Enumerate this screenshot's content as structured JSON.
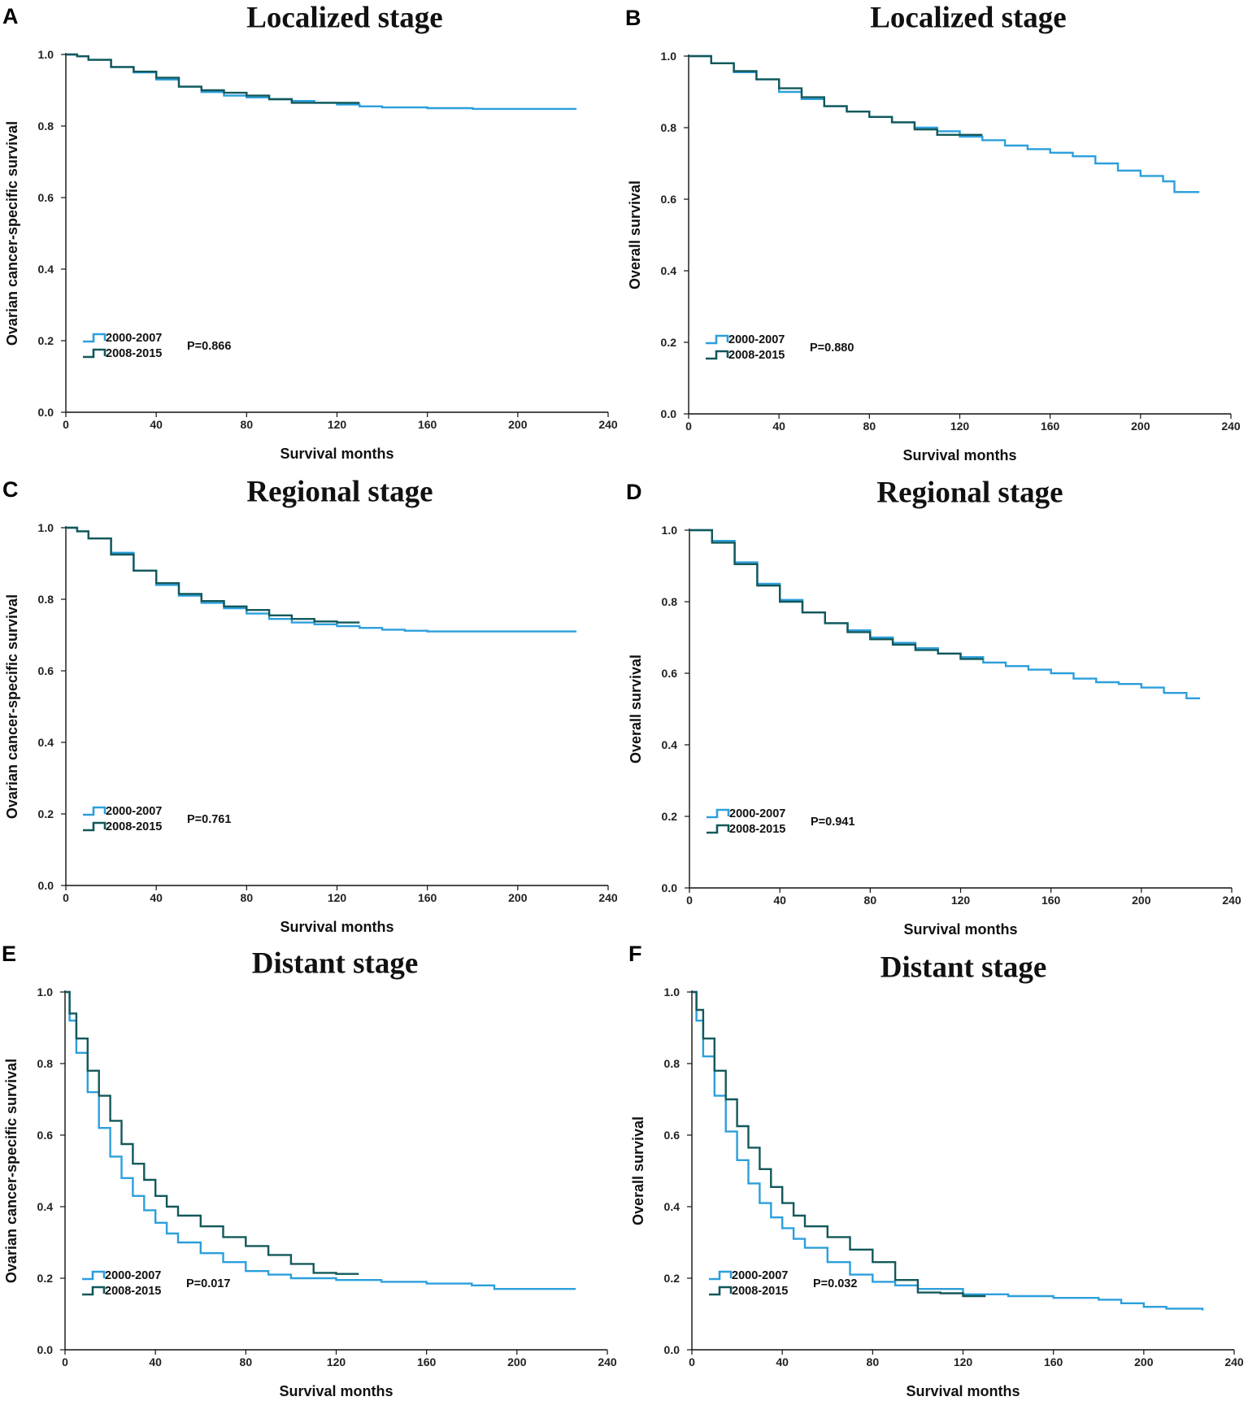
{
  "figure": {
    "series_colors": [
      "#2b9fdc",
      "#13585a"
    ],
    "legend_labels": [
      "2000-2007",
      "2008-2015"
    ]
  },
  "chart_data": [
    {
      "panel": "A",
      "type": "line",
      "title": "Localized stage",
      "xlabel": "Survival months",
      "ylabel": "Ovarian cancer-specific survival",
      "xlim": [
        0,
        240
      ],
      "ylim": [
        0,
        1
      ],
      "xticks": [
        "0",
        "40",
        "80",
        "120",
        "160",
        "200",
        "240"
      ],
      "yticks": [
        "0.0",
        "0.2",
        "0.4",
        "0.6",
        "0.8",
        "1.0"
      ],
      "p_value": "P=0.866",
      "series": [
        {
          "name": "2000-2007",
          "x": [
            0,
            5,
            10,
            20,
            30,
            40,
            50,
            60,
            70,
            80,
            90,
            100,
            110,
            120,
            130,
            140,
            160,
            180,
            200,
            226
          ],
          "y": [
            1.0,
            0.995,
            0.985,
            0.965,
            0.95,
            0.93,
            0.91,
            0.895,
            0.885,
            0.88,
            0.875,
            0.87,
            0.865,
            0.86,
            0.855,
            0.852,
            0.85,
            0.848,
            0.848,
            0.848
          ]
        },
        {
          "name": "2008-2015",
          "x": [
            0,
            5,
            10,
            20,
            30,
            40,
            50,
            60,
            70,
            80,
            90,
            100,
            110,
            120,
            130
          ],
          "y": [
            1.0,
            0.995,
            0.985,
            0.965,
            0.952,
            0.935,
            0.91,
            0.9,
            0.893,
            0.885,
            0.875,
            0.865,
            0.865,
            0.865,
            0.865
          ]
        }
      ]
    },
    {
      "panel": "B",
      "type": "line",
      "title": "Localized stage",
      "xlabel": "Survival months",
      "ylabel": "Overall survival",
      "xlim": [
        0,
        240
      ],
      "ylim": [
        0,
        1
      ],
      "xticks": [
        "0",
        "40",
        "80",
        "120",
        "160",
        "200",
        "240"
      ],
      "yticks": [
        "0.0",
        "0.2",
        "0.4",
        "0.6",
        "0.8",
        "1.0"
      ],
      "p_value": "P=0.880",
      "series": [
        {
          "name": "2000-2007",
          "x": [
            0,
            10,
            20,
            30,
            40,
            50,
            60,
            70,
            80,
            90,
            100,
            110,
            120,
            130,
            140,
            150,
            160,
            170,
            180,
            190,
            200,
            210,
            215,
            226
          ],
          "y": [
            1.0,
            0.98,
            0.955,
            0.935,
            0.9,
            0.88,
            0.86,
            0.845,
            0.83,
            0.815,
            0.8,
            0.79,
            0.775,
            0.765,
            0.75,
            0.74,
            0.73,
            0.72,
            0.7,
            0.68,
            0.665,
            0.65,
            0.62,
            0.62
          ]
        },
        {
          "name": "2008-2015",
          "x": [
            0,
            10,
            20,
            30,
            40,
            50,
            60,
            70,
            80,
            90,
            100,
            110,
            120,
            130
          ],
          "y": [
            1.0,
            0.98,
            0.958,
            0.935,
            0.91,
            0.885,
            0.86,
            0.845,
            0.83,
            0.815,
            0.795,
            0.78,
            0.78,
            0.78
          ]
        }
      ]
    },
    {
      "panel": "C",
      "type": "line",
      "title": "Regional stage",
      "xlabel": "Survival months",
      "ylabel": "Ovarian cancer-specific survival",
      "xlim": [
        0,
        240
      ],
      "ylim": [
        0,
        1
      ],
      "xticks": [
        "0",
        "40",
        "80",
        "120",
        "160",
        "200",
        "240"
      ],
      "yticks": [
        "0.0",
        "0.2",
        "0.4",
        "0.6",
        "0.8",
        "1.0"
      ],
      "p_value": "P=0.761",
      "series": [
        {
          "name": "2000-2007",
          "x": [
            0,
            5,
            10,
            20,
            30,
            40,
            50,
            60,
            70,
            80,
            90,
            100,
            110,
            120,
            130,
            140,
            150,
            160,
            180,
            200,
            226
          ],
          "y": [
            1.0,
            0.99,
            0.97,
            0.93,
            0.88,
            0.84,
            0.81,
            0.79,
            0.775,
            0.76,
            0.745,
            0.735,
            0.73,
            0.725,
            0.72,
            0.715,
            0.712,
            0.71,
            0.71,
            0.71,
            0.71
          ]
        },
        {
          "name": "2008-2015",
          "x": [
            0,
            5,
            10,
            20,
            30,
            40,
            50,
            60,
            70,
            80,
            90,
            100,
            110,
            120,
            130
          ],
          "y": [
            1.0,
            0.99,
            0.97,
            0.925,
            0.88,
            0.845,
            0.815,
            0.795,
            0.78,
            0.77,
            0.755,
            0.745,
            0.738,
            0.735,
            0.735
          ]
        }
      ]
    },
    {
      "panel": "D",
      "type": "line",
      "title": "Regional stage",
      "xlabel": "Survival months",
      "ylabel": "Overall survival",
      "xlim": [
        0,
        240
      ],
      "ylim": [
        0,
        1
      ],
      "xticks": [
        "0",
        "40",
        "80",
        "120",
        "160",
        "200",
        "240"
      ],
      "yticks": [
        "0.0",
        "0.2",
        "0.4",
        "0.6",
        "0.8",
        "1.0"
      ],
      "p_value": "P=0.941",
      "series": [
        {
          "name": "2000-2007",
          "x": [
            0,
            10,
            20,
            30,
            40,
            50,
            60,
            70,
            80,
            90,
            100,
            110,
            120,
            130,
            140,
            150,
            160,
            170,
            180,
            190,
            200,
            210,
            220,
            226
          ],
          "y": [
            1.0,
            0.97,
            0.91,
            0.85,
            0.805,
            0.77,
            0.74,
            0.72,
            0.7,
            0.685,
            0.67,
            0.655,
            0.645,
            0.63,
            0.62,
            0.61,
            0.6,
            0.585,
            0.575,
            0.57,
            0.56,
            0.545,
            0.53,
            0.53
          ]
        },
        {
          "name": "2008-2015",
          "x": [
            0,
            10,
            20,
            30,
            40,
            50,
            60,
            70,
            80,
            90,
            100,
            110,
            120,
            130
          ],
          "y": [
            1.0,
            0.965,
            0.905,
            0.845,
            0.8,
            0.77,
            0.74,
            0.715,
            0.695,
            0.68,
            0.665,
            0.655,
            0.64,
            0.64
          ]
        }
      ]
    },
    {
      "panel": "E",
      "type": "line",
      "title": "Distant stage",
      "xlabel": "Survival months",
      "ylabel": "Ovarian cancer-specific survival",
      "xlim": [
        0,
        240
      ],
      "ylim": [
        0,
        1
      ],
      "xticks": [
        "0",
        "40",
        "80",
        "120",
        "160",
        "200",
        "240"
      ],
      "yticks": [
        "0.0",
        "0.2",
        "0.4",
        "0.6",
        "0.8",
        "1.0"
      ],
      "p_value": "P=0.017",
      "series": [
        {
          "name": "2000-2007",
          "x": [
            0,
            2,
            5,
            10,
            15,
            20,
            25,
            30,
            35,
            40,
            45,
            50,
            60,
            70,
            80,
            90,
            100,
            120,
            140,
            160,
            180,
            190,
            200,
            226
          ],
          "y": [
            1.0,
            0.92,
            0.83,
            0.72,
            0.62,
            0.54,
            0.48,
            0.43,
            0.39,
            0.355,
            0.325,
            0.3,
            0.27,
            0.245,
            0.22,
            0.21,
            0.2,
            0.195,
            0.19,
            0.185,
            0.18,
            0.17,
            0.17,
            0.17
          ]
        },
        {
          "name": "2008-2015",
          "x": [
            0,
            2,
            5,
            10,
            15,
            20,
            25,
            30,
            35,
            40,
            45,
            50,
            60,
            70,
            80,
            90,
            100,
            110,
            120,
            130
          ],
          "y": [
            1.0,
            0.94,
            0.87,
            0.78,
            0.71,
            0.64,
            0.575,
            0.52,
            0.475,
            0.43,
            0.4,
            0.375,
            0.345,
            0.315,
            0.29,
            0.265,
            0.24,
            0.215,
            0.212,
            0.212
          ]
        }
      ]
    },
    {
      "panel": "F",
      "type": "line",
      "title": "Distant stage",
      "xlabel": "Survival months",
      "ylabel": "Overall survival",
      "xlim": [
        0,
        240
      ],
      "ylim": [
        0,
        1
      ],
      "xticks": [
        "0",
        "40",
        "80",
        "120",
        "160",
        "200",
        "240"
      ],
      "yticks": [
        "0.0",
        "0.2",
        "0.4",
        "0.6",
        "0.8",
        "1.0"
      ],
      "p_value": "P=0.032",
      "series": [
        {
          "name": "2000-2007",
          "x": [
            0,
            2,
            5,
            10,
            15,
            20,
            25,
            30,
            35,
            40,
            45,
            50,
            60,
            70,
            80,
            90,
            100,
            120,
            140,
            160,
            180,
            190,
            200,
            210,
            226
          ],
          "y": [
            1.0,
            0.92,
            0.82,
            0.71,
            0.61,
            0.53,
            0.465,
            0.41,
            0.37,
            0.34,
            0.31,
            0.285,
            0.245,
            0.21,
            0.19,
            0.18,
            0.17,
            0.155,
            0.15,
            0.145,
            0.14,
            0.13,
            0.12,
            0.115,
            0.11
          ]
        },
        {
          "name": "2008-2015",
          "x": [
            0,
            2,
            5,
            10,
            15,
            20,
            25,
            30,
            35,
            40,
            45,
            50,
            60,
            70,
            80,
            90,
            100,
            110,
            120,
            130
          ],
          "y": [
            1.0,
            0.95,
            0.87,
            0.78,
            0.7,
            0.625,
            0.565,
            0.505,
            0.455,
            0.41,
            0.375,
            0.345,
            0.315,
            0.28,
            0.245,
            0.195,
            0.16,
            0.158,
            0.15,
            0.15
          ]
        }
      ]
    }
  ]
}
